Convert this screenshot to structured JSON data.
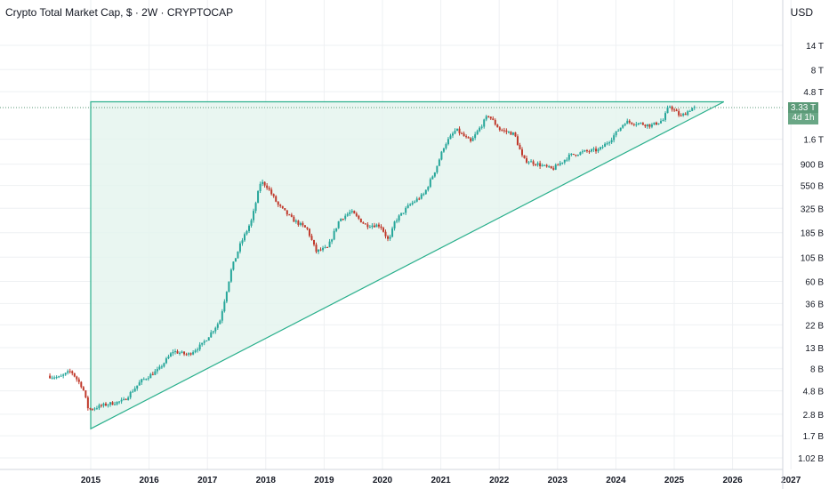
{
  "header": {
    "title": "Crypto Total Market Cap, $ · 2W · CRYPTOCAP",
    "currency": "USD"
  },
  "price_badge": {
    "price": "3.33 T",
    "countdown": "4d 1h",
    "color": "#5b9a78"
  },
  "colors": {
    "up": "#26a69a",
    "down": "#c0392b",
    "triangle_line": "#2bb08d",
    "triangle_fill": "#e3f4ee",
    "grid": "#eef0f3",
    "axis_text": "#131722"
  },
  "chart_data": {
    "type": "candlestick",
    "scale": "log",
    "x": [
      2014.3,
      2014.5,
      2014.7,
      2014.9,
      2015.0,
      2015.3,
      2015.6,
      2015.9,
      2016.2,
      2016.45,
      2016.7,
      2016.95,
      2017.25,
      2017.45,
      2017.6,
      2017.8,
      2017.95,
      2018.05,
      2018.25,
      2018.5,
      2018.75,
      2018.9,
      2019.1,
      2019.3,
      2019.5,
      2019.75,
      2020.0,
      2020.15,
      2020.25,
      2020.5,
      2020.75,
      2020.95,
      2021.1,
      2021.3,
      2021.55,
      2021.85,
      2022.05,
      2022.3,
      2022.45,
      2022.7,
      2022.95,
      2023.25,
      2023.5,
      2023.75,
      2023.95,
      2024.2,
      2024.45,
      2024.65,
      2024.85,
      2024.95,
      2025.15,
      2025.35
    ],
    "y": [
      6800000000,
      6500000000,
      7600000000,
      5200000000,
      3100000000,
      3500000000,
      3800000000,
      6000000000,
      7800000000,
      12000000000,
      11000000000,
      14000000000,
      24000000000,
      80000000000,
      140000000000,
      250000000000,
      600000000000,
      550000000000,
      350000000000,
      250000000000,
      200000000000,
      120000000000,
      130000000000,
      250000000000,
      300000000000,
      220000000000,
      220000000000,
      150000000000,
      240000000000,
      350000000000,
      450000000000,
      800000000000,
      1400000000000,
      2000000000000,
      1500000000000,
      2800000000000,
      2000000000000,
      1800000000000,
      1000000000000,
      900000000000,
      800000000000,
      1100000000000,
      1200000000000,
      1250000000000,
      1600000000000,
      2400000000000,
      2300000000000,
      2200000000000,
      2500000000000,
      3500000000000,
      2700000000000,
      3300000000000
    ],
    "x_tick_labels": [
      "2015",
      "2016",
      "2017",
      "2018",
      "2019",
      "2020",
      "2021",
      "2022",
      "2023",
      "2024",
      "2025",
      "2026",
      "2027"
    ],
    "y_tick_labels": [
      "14 T",
      "8 T",
      "4.8 T",
      "1.6 T",
      "900 B",
      "550 B",
      "325 B",
      "185 B",
      "105 B",
      "60 B",
      "36 B",
      "22 B",
      "13 B",
      "8 B",
      "4.8 B",
      "2.8 B",
      "1.7 B",
      "1.02 B"
    ],
    "y_tick_values": [
      14000000000000,
      8000000000000,
      4800000000000,
      1600000000000,
      900000000000,
      550000000000,
      325000000000,
      185000000000,
      105000000000,
      60000000000,
      36000000000,
      22000000000,
      13000000000,
      8000000000,
      4800000000,
      2800000000,
      1700000000,
      1020000000
    ],
    "last_price": "3.33 T",
    "triangle": {
      "vertices": [
        [
          2015.0,
          3800000000000
        ],
        [
          2015.0,
          2000000000
        ],
        [
          2025.85,
          3800000000000
        ]
      ]
    },
    "grid": true
  }
}
